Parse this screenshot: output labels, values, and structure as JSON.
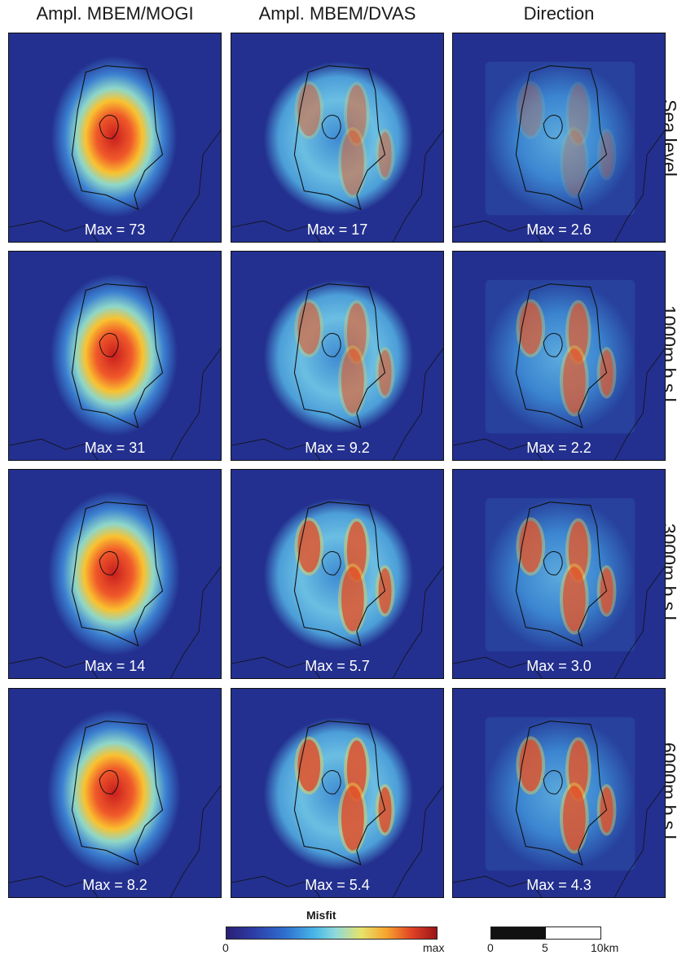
{
  "columns": [
    "Ampl. MBEM/MOGI",
    "Ampl. MBEM/DVAS",
    "Direction"
  ],
  "rows": [
    "Sea level",
    "1000m b.s.l.",
    "3000m b.s.l.",
    "6000m b.s.l."
  ],
  "max_values": [
    [
      "Max = 73",
      "Max = 17",
      "Max = 2.6"
    ],
    [
      "Max = 31",
      "Max = 9.2",
      "Max = 2.2"
    ],
    [
      "Max = 14",
      "Max = 5.7",
      "Max = 3.0"
    ],
    [
      "Max = 8.2",
      "Max = 5.4",
      "Max = 4.3"
    ]
  ],
  "colorbar": {
    "title": "Misfit",
    "min_label": "0",
    "max_label": "max"
  },
  "scalebar": {
    "labels": [
      "0",
      "5",
      "10km"
    ]
  },
  "colors": {
    "background_low": "#23308f",
    "mid": "#49b7e8",
    "high": "#e14326",
    "peak": "#9a1418"
  }
}
